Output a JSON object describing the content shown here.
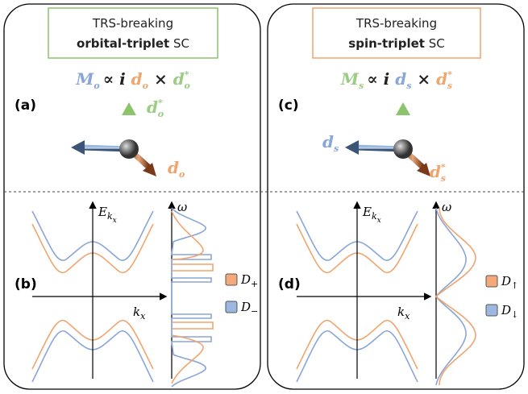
{
  "panels": [
    {
      "header": {
        "line1": "TRS-breaking",
        "bold": "orbital-triplet",
        "rest": "SC"
      },
      "formula": {
        "magnet": "M",
        "magnet_sub": "o",
        "prop": "∝",
        "i": "i",
        "d": "d",
        "d_sub": "o",
        "times": "×",
        "dstar": "d",
        "dstar_sub": "o",
        "dstar_sup": "*"
      },
      "label_top": "(a)",
      "vector_a": {
        "symbol": "d",
        "sub": "o",
        "sup": "*"
      },
      "vector_b": {
        "symbol": "d",
        "sub": "o"
      },
      "label_bottom": "(b)",
      "axes": {
        "energy": "E",
        "energy_sub": "k",
        "energy_subsub": "x",
        "momentum": "k",
        "momentum_sub": "x",
        "omega": "ω"
      },
      "legend": [
        {
          "symbol": "D",
          "sub": "+"
        },
        {
          "symbol": "D",
          "sub": "−"
        }
      ]
    },
    {
      "header": {
        "line1": "TRS-breaking",
        "bold": "spin-triplet",
        "rest": "SC"
      },
      "formula": {
        "magnet": "M",
        "magnet_sub": "s",
        "prop": "∝",
        "i": "i",
        "d": "d",
        "d_sub": "s",
        "times": "×",
        "dstar": "d",
        "dstar_sub": "s",
        "dstar_sup": "*"
      },
      "label_top": "(c)",
      "vector_a": {
        "symbol": "d",
        "sub": "s"
      },
      "vector_b": {
        "symbol": "d",
        "sub": "s",
        "sup": "*"
      },
      "label_bottom": "(d)",
      "axes": {
        "energy": "E",
        "energy_sub": "k",
        "energy_subsub": "x",
        "momentum": "k",
        "momentum_sub": "x",
        "omega": "ω"
      },
      "legend": [
        {
          "symbol": "D",
          "sub": "↑"
        },
        {
          "symbol": "D",
          "sub": "↓"
        }
      ]
    }
  ]
}
